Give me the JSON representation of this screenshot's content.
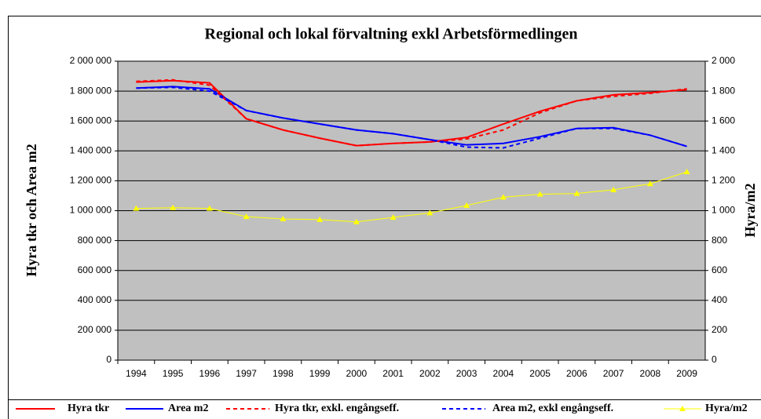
{
  "chart_data": {
    "type": "line",
    "title": "Regional och lokal förvaltning exkl Arbetsförmedlingen",
    "y_label": "Hyra tkr och Area m2",
    "y2_label": "Hyra/m2",
    "categories": [
      "1994",
      "1995",
      "1996",
      "1997",
      "1998",
      "1999",
      "2000",
      "2001",
      "2002",
      "2003",
      "2004",
      "2005",
      "2006",
      "2007",
      "2008",
      "2009"
    ],
    "ylim": [
      0,
      2000000
    ],
    "yticks": [
      0,
      {
        "value": 200000,
        "label": "200 000"
      },
      {
        "value": 400000,
        "label": "400 000"
      },
      {
        "value": 600000,
        "label": "600 000"
      },
      {
        "value": 800000,
        "label": "800 000"
      },
      {
        "value": 1000000,
        "label": "1 000 000"
      },
      {
        "value": 1200000,
        "label": "1 200 000"
      },
      {
        "value": 1400000,
        "label": "1 400 000"
      },
      {
        "value": 1600000,
        "label": "1 600 000"
      },
      {
        "value": 1800000,
        "label": "1 800 000"
      },
      {
        "value": 2000000,
        "label": "2 000 000"
      }
    ],
    "y2lim": [
      0,
      2000
    ],
    "y2ticks": [
      0,
      200,
      400,
      600,
      800,
      {
        "value": 1000,
        "label": "1 000"
      },
      {
        "value": 1200,
        "label": "1 200"
      },
      {
        "value": 1400,
        "label": "1 400"
      },
      {
        "value": 1600,
        "label": "1 600"
      },
      {
        "value": 1800,
        "label": "1 800"
      },
      {
        "value": 2000,
        "label": "2 000"
      }
    ],
    "grid": true,
    "legend": "bottom",
    "series": [
      {
        "name": "Hyra tkr",
        "color": "#ff0000",
        "dash": false,
        "values": [
          1860000,
          1870000,
          1855000,
          1615000,
          1540000,
          1485000,
          1435000,
          1450000,
          1460000,
          1490000,
          1580000,
          1665000,
          1735000,
          1775000,
          1790000,
          1810000
        ]
      },
      {
        "name": "Area m2",
        "color": "#0000ff",
        "dash": false,
        "values": [
          1820000,
          1830000,
          1815000,
          1670000,
          1620000,
          1580000,
          1540000,
          1515000,
          1475000,
          1440000,
          1450000,
          1495000,
          1550000,
          1555000,
          1505000,
          1430000
        ]
      },
      {
        "name": "Hyra tkr, exkl. engångseff.",
        "color": "#ff0000",
        "dash": true,
        "values": [
          1865000,
          1875000,
          1840000,
          1615000,
          1540000,
          1485000,
          1435000,
          1450000,
          1460000,
          1480000,
          1540000,
          1655000,
          1735000,
          1765000,
          1785000,
          1815000
        ]
      },
      {
        "name": "Area m2, exkl engångseff.",
        "color": "#0000ff",
        "dash": true,
        "values": [
          1820000,
          1825000,
          1800000,
          1670000,
          1620000,
          1580000,
          1540000,
          1515000,
          1475000,
          1425000,
          1420000,
          1485000,
          1550000,
          1550000,
          1505000,
          1430000
        ]
      },
      {
        "name": "Hyra/m2",
        "color": "#ffff00",
        "dash": false,
        "marker": "triangle",
        "axis": "y2",
        "values": [
          1015,
          1020,
          1015,
          960,
          945,
          940,
          925,
          955,
          985,
          1035,
          1090,
          1110,
          1115,
          1140,
          1180,
          1260
        ]
      }
    ]
  }
}
